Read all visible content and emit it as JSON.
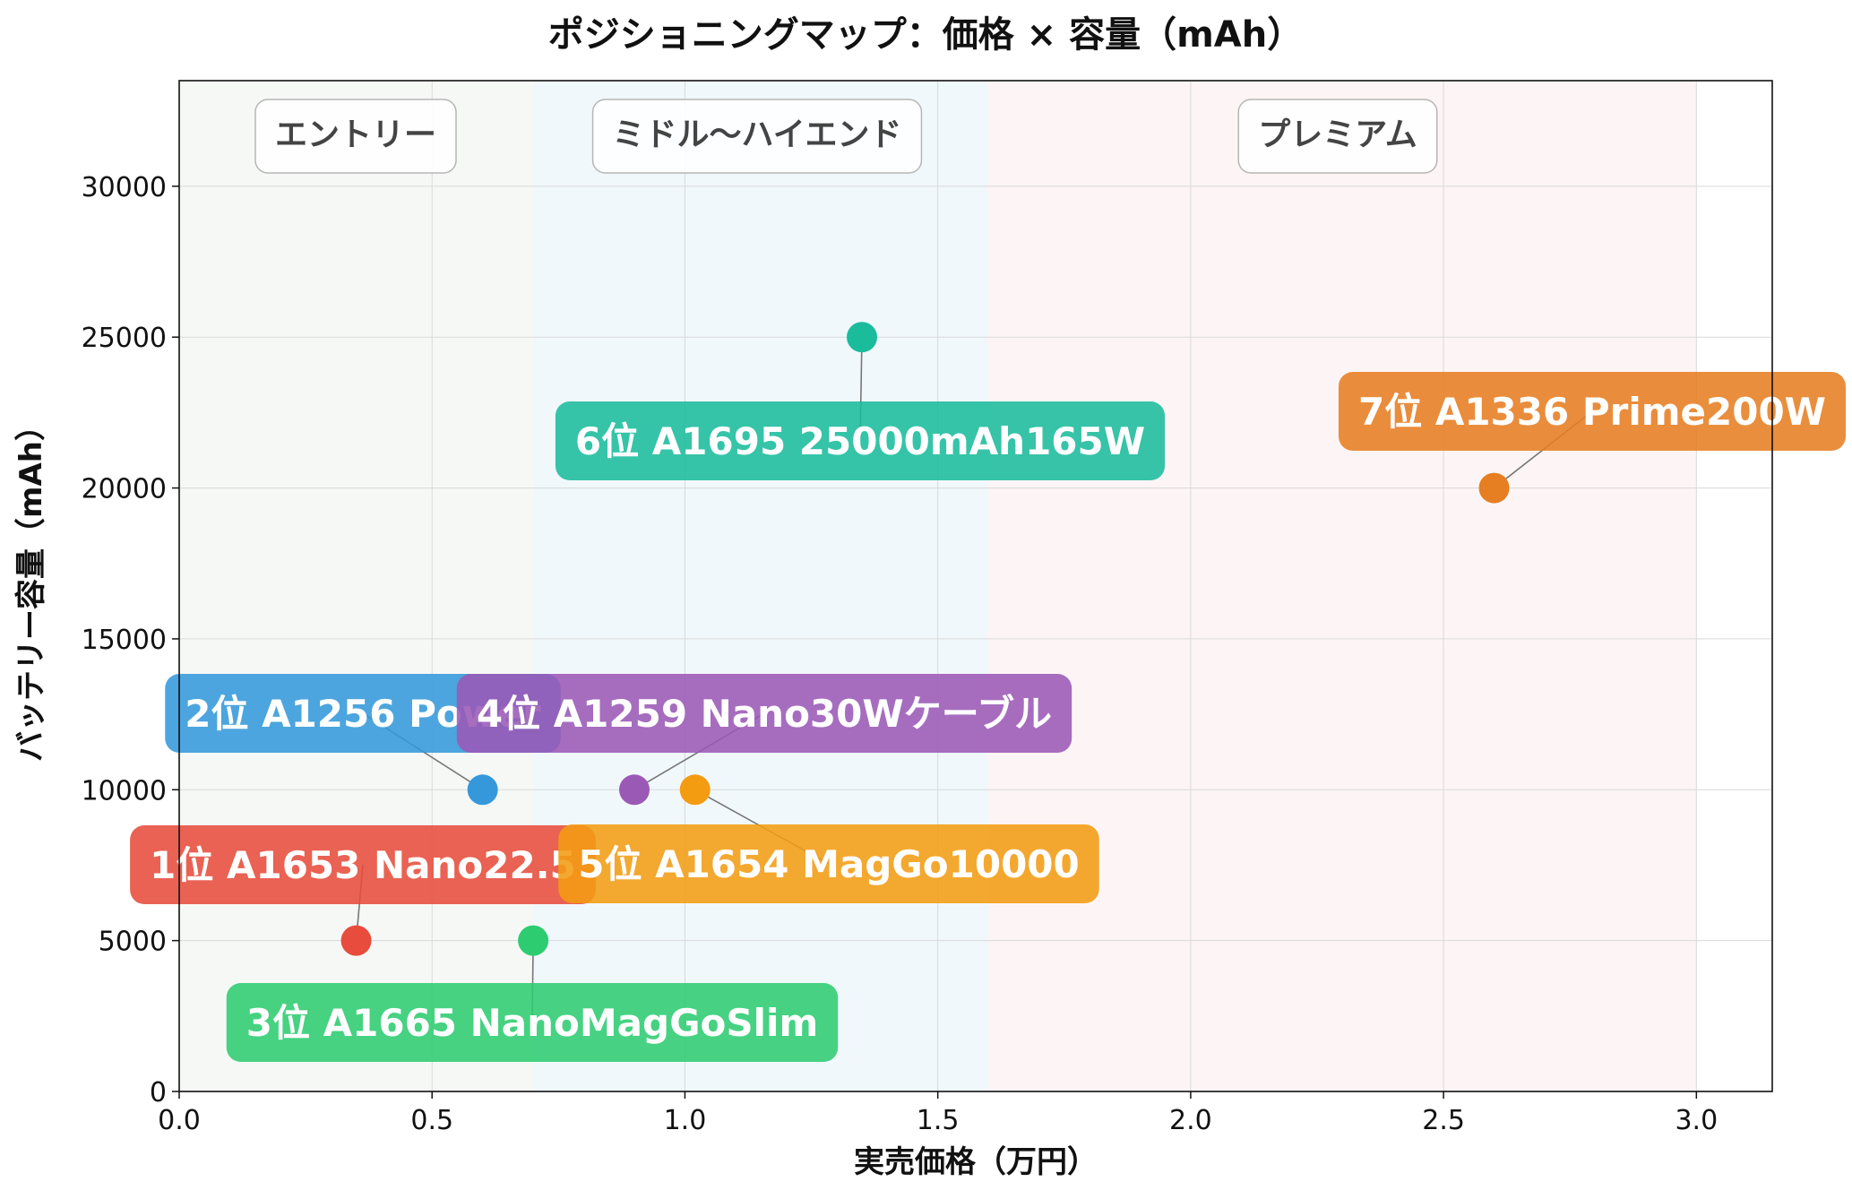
{
  "chart_data": {
    "type": "scatter",
    "title": "ポジショニングマップ：価格 × 容量（mAh）",
    "xlabel": "実売価格（万円）",
    "ylabel": "バッテリー容量（mAh）",
    "xlim": [
      0.0,
      3.15
    ],
    "ylim": [
      0,
      33500
    ],
    "xticks": [
      "0.0",
      "0.5",
      "1.0",
      "1.5",
      "2.0",
      "2.5",
      "3.0"
    ],
    "yticks": [
      "0",
      "5000",
      "10000",
      "15000",
      "20000",
      "25000",
      "30000"
    ],
    "grid": true,
    "zones": [
      {
        "label": "エントリー",
        "x_range": [
          0.0,
          0.7
        ],
        "color": "#eef2ee"
      },
      {
        "label": "ミドル〜ハイエンド",
        "x_range": [
          0.7,
          1.6
        ],
        "color": "#e6f3fa"
      },
      {
        "label": "プレミアム",
        "x_range": [
          1.6,
          3.0
        ],
        "color": "#fbecec"
      }
    ],
    "points": [
      {
        "label": "1位 A1653 Nano22.5",
        "x": 0.35,
        "y": 5000,
        "color": "#e74c3c"
      },
      {
        "label": "2位 A1256 Power",
        "x": 0.6,
        "y": 10000,
        "color": "#3498db"
      },
      {
        "label": "3位 A1665 NanoMagGoSlim",
        "x": 0.7,
        "y": 5000,
        "color": "#2ecc71"
      },
      {
        "label": "4位 A1259 Nano30Wケーブル",
        "x": 0.9,
        "y": 10000,
        "color": "#9b59b6"
      },
      {
        "label": "5位 A1654 MagGo10000",
        "x": 1.02,
        "y": 10000,
        "color": "#f39c12"
      },
      {
        "label": "6位 A1695 25000mAh165W",
        "x": 1.35,
        "y": 25000,
        "color": "#1abc9c"
      },
      {
        "label": "7位 A1336 Prime200W",
        "x": 2.6,
        "y": 20000,
        "color": "#e67e22"
      }
    ]
  }
}
